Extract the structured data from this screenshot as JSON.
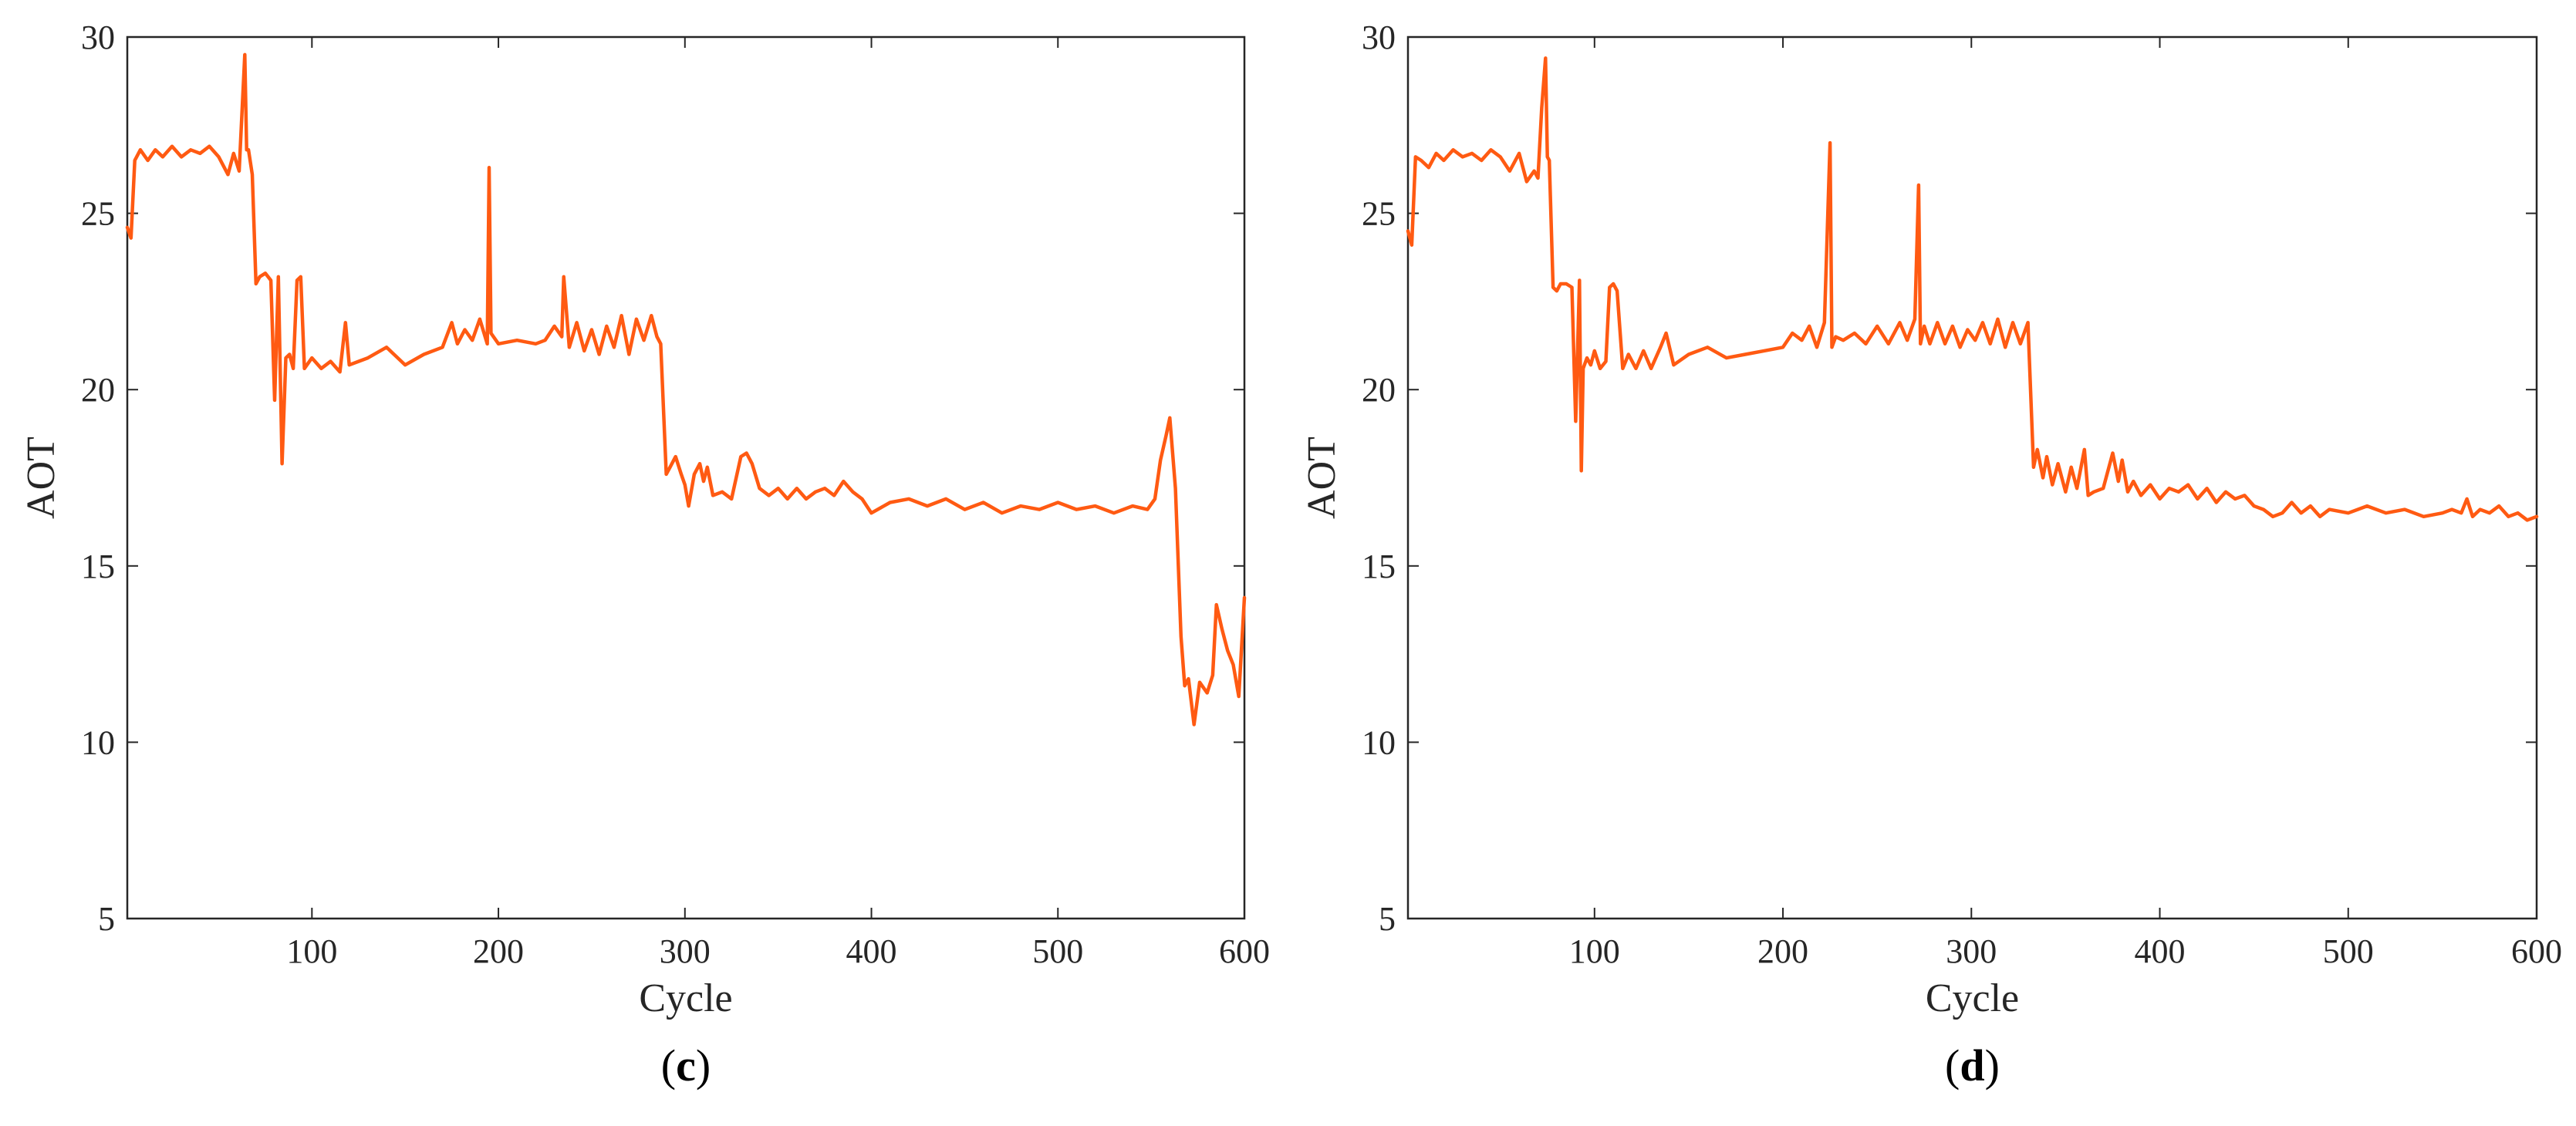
{
  "chart_data": [
    {
      "type": "line",
      "panel_label": "c",
      "xlabel": "Cycle",
      "ylabel": "AOT",
      "xlim": [
        1,
        600
      ],
      "ylim": [
        5,
        30
      ],
      "xticks": [
        100,
        200,
        300,
        400,
        500,
        600
      ],
      "yticks": [
        5,
        10,
        15,
        20,
        25,
        30
      ],
      "grid": false,
      "color": "#ff5a12",
      "series": [
        {
          "x": [
            1,
            3,
            5,
            8,
            12,
            16,
            20,
            25,
            30,
            35,
            40,
            45,
            50,
            55,
            58,
            61,
            64,
            65,
            66,
            68,
            70,
            72,
            75,
            78,
            80,
            82,
            84,
            86,
            88,
            90,
            92,
            94,
            96,
            100,
            105,
            110,
            115,
            118,
            120,
            125,
            130,
            140,
            150,
            160,
            170,
            175,
            178,
            182,
            186,
            190,
            194,
            195,
            196,
            200,
            210,
            220,
            225,
            230,
            234,
            235,
            238,
            242,
            246,
            250,
            254,
            258,
            262,
            266,
            270,
            274,
            278,
            282,
            285,
            287,
            290,
            292,
            295,
            298,
            300,
            302,
            305,
            308,
            310,
            312,
            315,
            320,
            325,
            330,
            333,
            336,
            340,
            345,
            350,
            355,
            360,
            365,
            370,
            375,
            380,
            385,
            390,
            395,
            400,
            410,
            420,
            430,
            440,
            450,
            460,
            470,
            480,
            490,
            500,
            510,
            520,
            530,
            540,
            548,
            552,
            555,
            558,
            560,
            563,
            566,
            568,
            570,
            573,
            576,
            580,
            583,
            585,
            588,
            591,
            594,
            597,
            600
          ],
          "y": [
            24.6,
            24.3,
            26.5,
            26.8,
            26.5,
            26.8,
            26.6,
            26.9,
            26.6,
            26.8,
            26.7,
            26.9,
            26.6,
            26.1,
            26.7,
            26.2,
            29.5,
            26.8,
            26.8,
            26.1,
            23.0,
            23.2,
            23.3,
            23.1,
            19.7,
            23.2,
            17.9,
            20.9,
            21.0,
            20.6,
            23.1,
            23.2,
            20.6,
            20.9,
            20.6,
            20.8,
            20.5,
            21.9,
            20.7,
            20.8,
            20.9,
            21.2,
            20.7,
            21.0,
            21.2,
            21.9,
            21.3,
            21.7,
            21.4,
            22.0,
            21.3,
            26.3,
            21.6,
            21.3,
            21.4,
            21.3,
            21.4,
            21.8,
            21.5,
            23.2,
            21.2,
            21.9,
            21.1,
            21.7,
            21.0,
            21.8,
            21.2,
            22.1,
            21.0,
            22.0,
            21.4,
            22.1,
            21.5,
            21.3,
            17.6,
            17.8,
            18.1,
            17.6,
            17.3,
            16.7,
            17.6,
            17.9,
            17.4,
            17.8,
            17.0,
            17.1,
            16.9,
            18.1,
            18.2,
            17.9,
            17.2,
            17.0,
            17.2,
            16.9,
            17.2,
            16.9,
            17.1,
            17.2,
            17.0,
            17.4,
            17.1,
            16.9,
            16.5,
            16.8,
            16.9,
            16.7,
            16.9,
            16.6,
            16.8,
            16.5,
            16.7,
            16.6,
            16.8,
            16.6,
            16.7,
            16.5,
            16.7,
            16.6,
            16.9,
            18.0,
            18.7,
            19.2,
            17.2,
            13.0,
            11.6,
            11.8,
            10.5,
            11.7,
            11.4,
            11.9,
            13.9,
            13.2,
            12.6,
            12.2,
            11.3,
            14.1
          ]
        }
      ]
    },
    {
      "type": "line",
      "panel_label": "d",
      "xlabel": "Cycle",
      "ylabel": "AOT",
      "xlim": [
        1,
        600
      ],
      "ylim": [
        5,
        30
      ],
      "xticks": [
        100,
        200,
        300,
        400,
        500,
        600
      ],
      "yticks": [
        5,
        10,
        15,
        20,
        25,
        30
      ],
      "grid": false,
      "color": "#ff5a12",
      "series": [
        {
          "x": [
            1,
            3,
            5,
            8,
            12,
            16,
            20,
            25,
            30,
            35,
            40,
            45,
            50,
            55,
            60,
            64,
            68,
            70,
            72,
            74,
            75,
            76,
            78,
            80,
            82,
            85,
            88,
            90,
            92,
            93,
            94,
            96,
            98,
            100,
            103,
            106,
            108,
            110,
            112,
            115,
            118,
            122,
            126,
            130,
            135,
            138,
            142,
            150,
            160,
            170,
            180,
            190,
            200,
            205,
            210,
            214,
            218,
            222,
            225,
            226,
            228,
            232,
            238,
            244,
            250,
            256,
            262,
            266,
            270,
            272,
            273,
            275,
            278,
            282,
            286,
            290,
            294,
            298,
            302,
            306,
            310,
            314,
            318,
            322,
            326,
            330,
            333,
            335,
            338,
            340,
            343,
            346,
            350,
            353,
            356,
            360,
            362,
            365,
            370,
            375,
            378,
            380,
            383,
            386,
            390,
            395,
            400,
            405,
            410,
            415,
            420,
            425,
            430,
            435,
            440,
            445,
            450,
            455,
            460,
            465,
            470,
            475,
            480,
            485,
            490,
            500,
            510,
            520,
            530,
            540,
            550,
            555,
            560,
            563,
            566,
            570,
            575,
            580,
            585,
            590,
            595,
            600
          ],
          "y": [
            24.5,
            24.1,
            26.6,
            26.5,
            26.3,
            26.7,
            26.5,
            26.8,
            26.6,
            26.7,
            26.5,
            26.8,
            26.6,
            26.2,
            26.7,
            25.9,
            26.2,
            26.0,
            28.0,
            29.4,
            26.6,
            26.5,
            22.9,
            22.8,
            23.0,
            23.0,
            22.9,
            19.1,
            23.1,
            17.7,
            20.6,
            20.9,
            20.7,
            21.1,
            20.6,
            20.8,
            22.9,
            23.0,
            22.8,
            20.6,
            21.0,
            20.6,
            21.1,
            20.6,
            21.2,
            21.6,
            20.7,
            21.0,
            21.2,
            20.9,
            21.0,
            21.1,
            21.2,
            21.6,
            21.4,
            21.8,
            21.2,
            21.9,
            27.0,
            21.2,
            21.5,
            21.4,
            21.6,
            21.3,
            21.8,
            21.3,
            21.9,
            21.4,
            22.0,
            25.8,
            21.3,
            21.8,
            21.3,
            21.9,
            21.3,
            21.8,
            21.2,
            21.7,
            21.4,
            21.9,
            21.3,
            22.0,
            21.2,
            21.9,
            21.3,
            21.9,
            17.8,
            18.3,
            17.5,
            18.1,
            17.3,
            17.9,
            17.1,
            17.8,
            17.2,
            18.3,
            17.0,
            17.1,
            17.2,
            18.2,
            17.4,
            18.0,
            17.1,
            17.4,
            17.0,
            17.3,
            16.9,
            17.2,
            17.1,
            17.3,
            16.9,
            17.2,
            16.8,
            17.1,
            16.9,
            17.0,
            16.7,
            16.6,
            16.4,
            16.5,
            16.8,
            16.5,
            16.7,
            16.4,
            16.6,
            16.5,
            16.7,
            16.5,
            16.6,
            16.4,
            16.5,
            16.6,
            16.5,
            16.9,
            16.4,
            16.6,
            16.5,
            16.7,
            16.4,
            16.5,
            16.3,
            16.4
          ]
        }
      ]
    }
  ]
}
